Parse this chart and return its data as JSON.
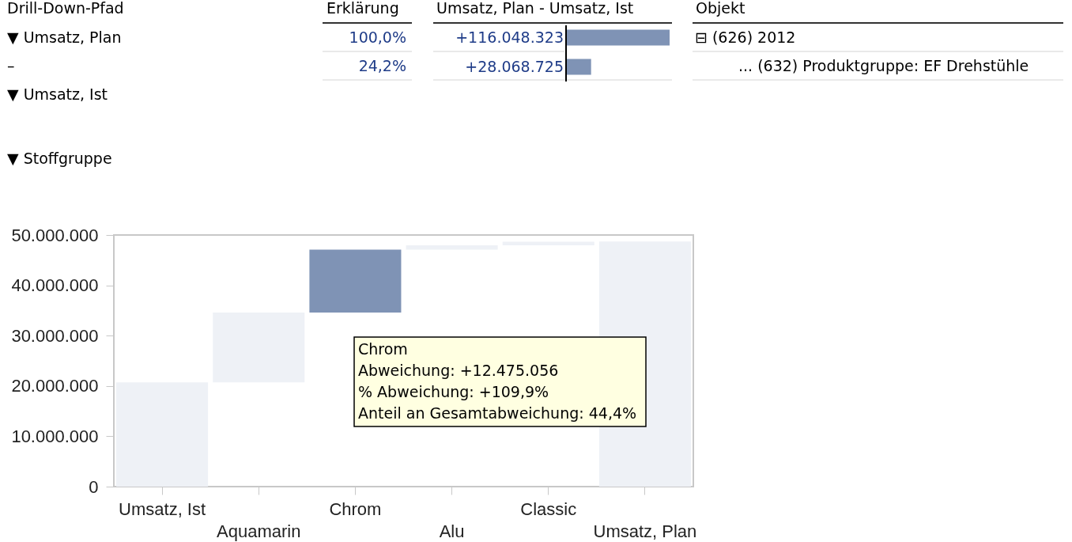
{
  "chart_data": [
    {
      "type": "other",
      "title": "Drill-Down-Pfad",
      "annotations": [
        "▼ Umsatz, Plan",
        "–",
        "▼ Umsatz, Ist"
      ]
    },
    {
      "type": "other",
      "title": "Erklärung",
      "annotations": [
        "100,0%",
        "24,2%"
      ]
    },
    {
      "type": "bar",
      "orientation": "horizontal",
      "title": "Umsatz, Plan - Umsatz, Ist",
      "categories": [
        null,
        null
      ],
      "values": [
        116048323,
        28068725
      ],
      "value_labels": [
        "+116.048.323",
        "+28.068.725"
      ],
      "color": "#7f93b5"
    },
    {
      "type": "other",
      "title": "Objekt",
      "annotations": [
        "⊟ (626) 2012",
        "... (632) Produktgruppe: EF Drehstühle"
      ]
    },
    {
      "type": "bar",
      "title": "▼ Stoffgruppe",
      "categories": [
        "Umsatz, Ist",
        "Aquamarin",
        "Chrom",
        "Alu",
        "Classic",
        "Umsatz, Plan"
      ],
      "values": [
        20700000,
        13900000,
        12475056,
        900000,
        700000,
        48700000
      ],
      "base": [
        0,
        20700000,
        34600000,
        47075056,
        47975056,
        0
      ],
      "colors": [
        "#eef1f6",
        "#eef1f6",
        "#7f93b5",
        "#eef1f6",
        "#eef1f6",
        "#eef1f6"
      ],
      "ylim": [
        0,
        50000000
      ],
      "yticks": [
        0,
        {
          "value": 10000000,
          "label": "10.000.000"
        },
        {
          "value": 20000000,
          "label": "20.000.000"
        },
        {
          "value": 30000000,
          "label": "30.000.000"
        },
        {
          "value": 40000000,
          "label": "40.000.000"
        },
        {
          "value": 50000000,
          "label": "50.000.000"
        }
      ],
      "annotations": [
        "Chrom\nAbweichung: +12.475.056\n% Abweichung: +109,9%\nAnteil an Gesamtabweichung: 44,4%"
      ]
    }
  ]
}
